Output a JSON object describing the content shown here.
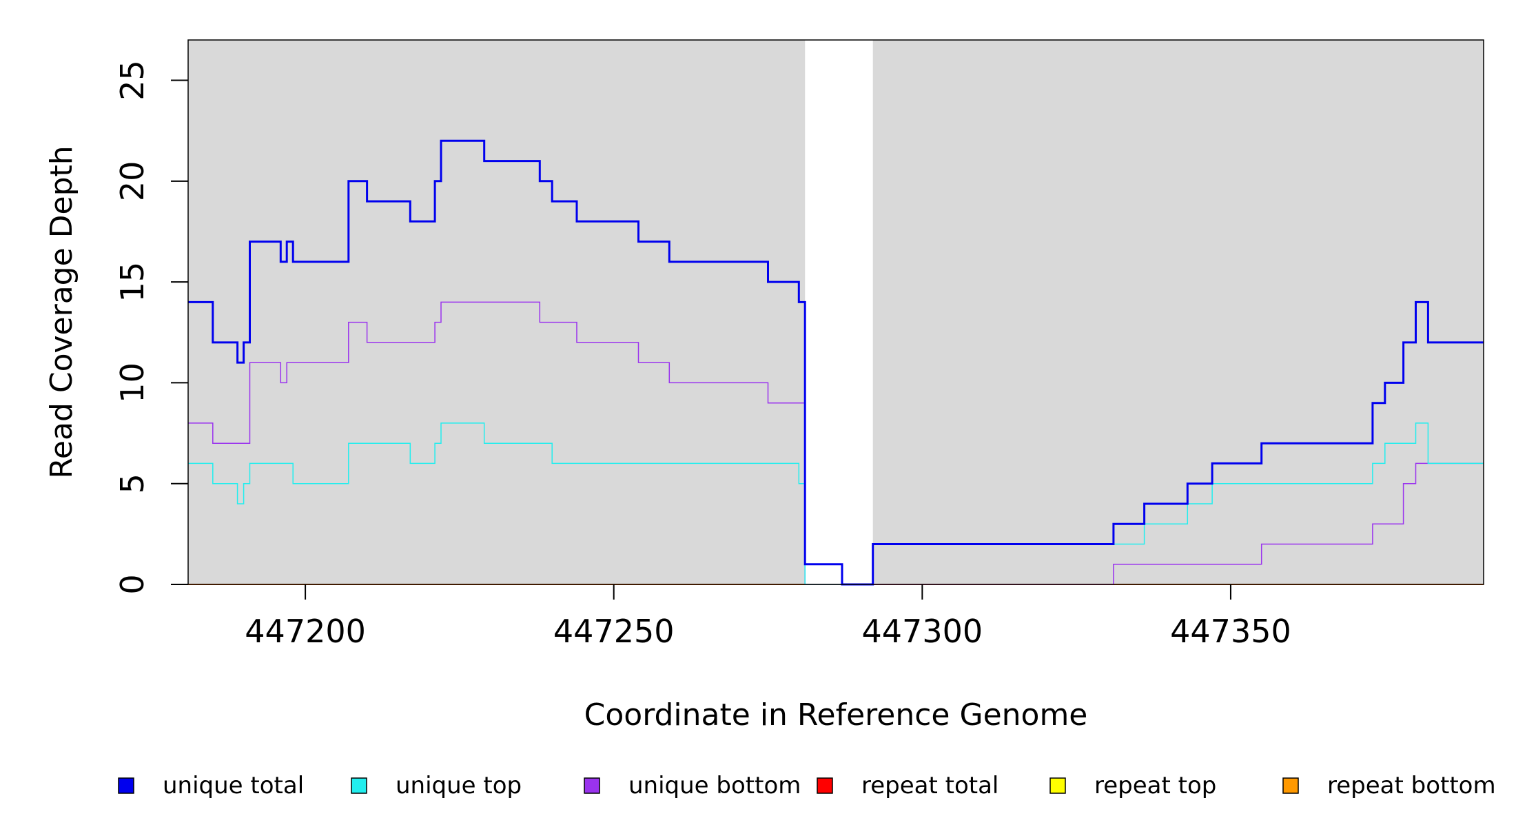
{
  "chart_data": {
    "type": "line",
    "step": true,
    "xlabel": "Coordinate in Reference Genome",
    "ylabel": "Read Coverage Depth",
    "xlim": [
      447181,
      447391
    ],
    "ylim": [
      0,
      27
    ],
    "x_ticks": [
      447200,
      447250,
      447300,
      447350
    ],
    "x_tick_labels": [
      "447200",
      "447250",
      "447300",
      "447350"
    ],
    "y_ticks": [
      0,
      5,
      10,
      15,
      20,
      25
    ],
    "y_tick_labels": [
      "0",
      "5",
      "10",
      "15",
      "20",
      "25"
    ],
    "panel_background": "#d9d9d9",
    "gap_region": [
      447281,
      447292
    ],
    "legend_position": "bottom",
    "series": [
      {
        "name": "unique total",
        "color": "#0000ee",
        "line_width": 3,
        "x": [
          447181,
          447185,
          447189,
          447190,
          447191,
          447196,
          447197,
          447198,
          447207,
          447210,
          447217,
          447221,
          447222,
          447229,
          447238,
          447240,
          447244,
          447254,
          447259,
          447275,
          447280,
          447281,
          447287,
          447292,
          447331,
          447336,
          447343,
          447347,
          447355,
          447373,
          447375,
          447378,
          447380,
          447382,
          447391
        ],
        "y": [
          14,
          12,
          11,
          12,
          17,
          16,
          17,
          16,
          20,
          19,
          18,
          20,
          22,
          21,
          20,
          19,
          18,
          17,
          16,
          15,
          14,
          1,
          0,
          2,
          3,
          4,
          5,
          6,
          7,
          9,
          10,
          12,
          14,
          12,
          12
        ]
      },
      {
        "name": "unique top",
        "color": "#22eeee",
        "line_width": 1.5,
        "x": [
          447181,
          447185,
          447189,
          447190,
          447191,
          447198,
          447207,
          447217,
          447221,
          447222,
          447229,
          447240,
          447280,
          447281,
          447292,
          447336,
          447343,
          447347,
          447373,
          447375,
          447380,
          447382
        ],
        "y": [
          6,
          5,
          4,
          5,
          6,
          5,
          7,
          6,
          7,
          8,
          7,
          6,
          5,
          0,
          2,
          3,
          4,
          5,
          6,
          7,
          8,
          6
        ]
      },
      {
        "name": "unique bottom",
        "color": "#9a33ee",
        "line_width": 1.5,
        "x": [
          447181,
          447185,
          447191,
          447196,
          447197,
          447207,
          447210,
          447221,
          447222,
          447238,
          447244,
          447254,
          447259,
          447275,
          447281,
          447331,
          447355,
          447373,
          447378,
          447380,
          447391
        ],
        "y": [
          8,
          7,
          11,
          10,
          11,
          13,
          12,
          13,
          14,
          13,
          12,
          11,
          10,
          9,
          0,
          1,
          2,
          3,
          5,
          6,
          6
        ]
      },
      {
        "name": "repeat total",
        "color": "#ff0000",
        "line_width": 1.5,
        "x": [
          447181,
          447391
        ],
        "y": [
          0,
          0
        ]
      },
      {
        "name": "repeat top",
        "color": "#ffff00",
        "line_width": 1.5,
        "x": [
          447181,
          447391
        ],
        "y": [
          0,
          0
        ]
      },
      {
        "name": "repeat bottom",
        "color": "#ff9900",
        "line_width": 2,
        "x": [
          447181,
          447391
        ],
        "y": [
          0,
          0
        ]
      }
    ]
  }
}
